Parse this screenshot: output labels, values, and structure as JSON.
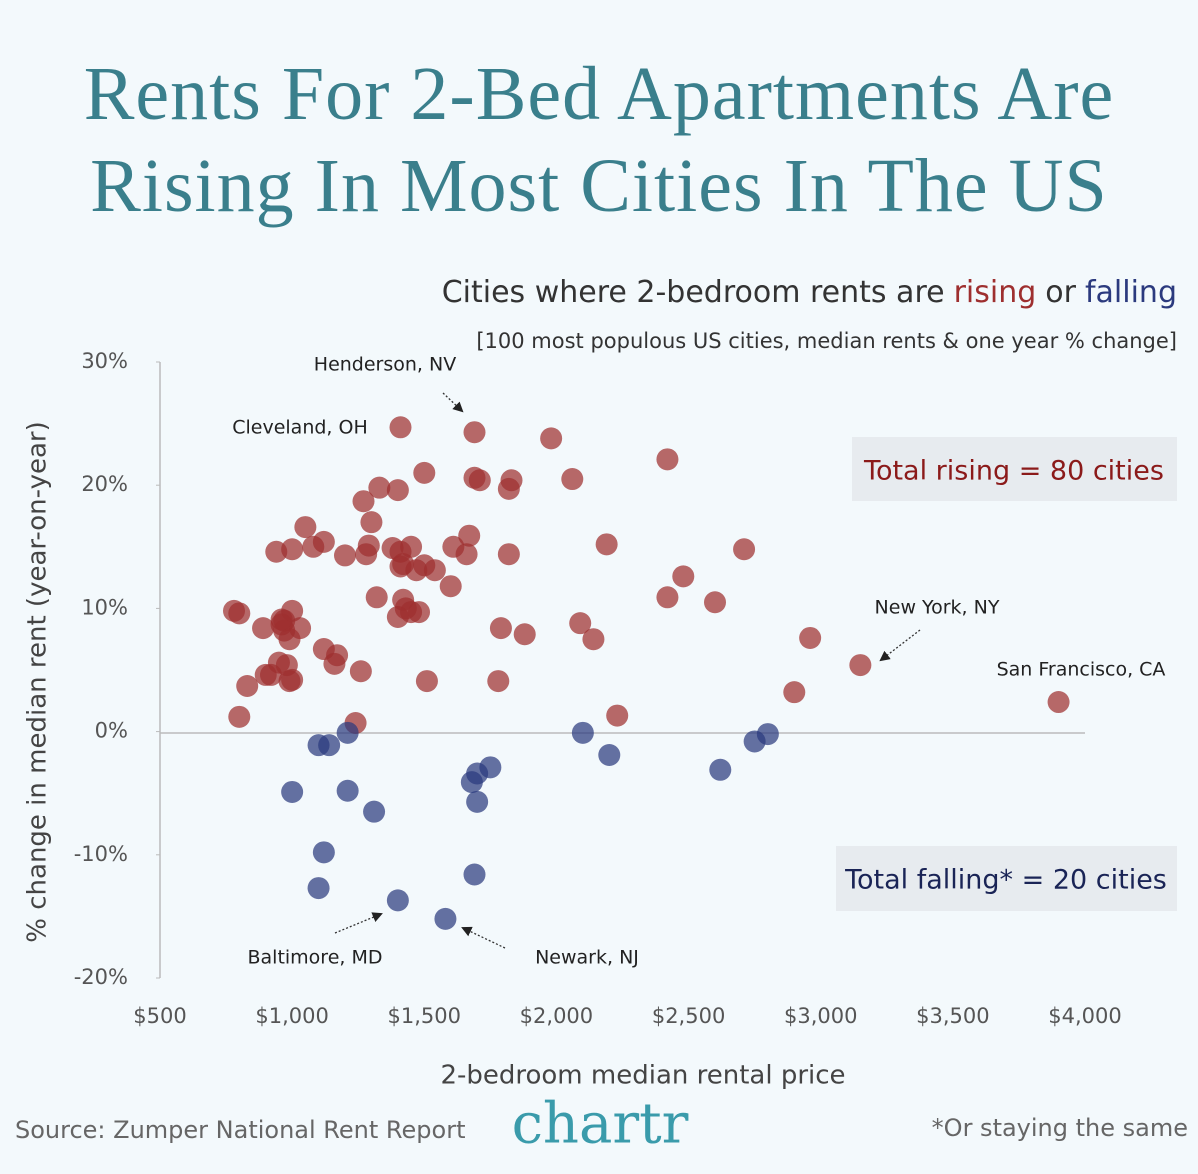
{
  "chart_data": {
    "type": "scatter",
    "title": "Rents For 2-Bed Apartments Are Rising In Most Cities In The US",
    "subtitle": {
      "lead": "Cities where 2-bedroom rents are",
      "joiner": "or"
    },
    "note": "[100 most populous US cities, median rents & one year % change]",
    "x_label": "2-bedroom median rental price",
    "y_label": "% change in median rent (year-on-year)",
    "source": "Source: Zumper National Rent Report",
    "logo": "chartr",
    "footnote": "*Or staying the same",
    "totals": [
      "Total rising = 80 cities",
      "Total falling* = 20 cities"
    ],
    "annotations": [
      "Henderson, NV",
      "Cleveland, OH",
      "New York, NY",
      "San Francisco, CA",
      "Baltimore, MD",
      "Newark, NJ"
    ],
    "xlim": [
      500,
      4000
    ],
    "ylim": [
      -20,
      30
    ],
    "xticks": [
      {
        "value": 500,
        "label": "$500"
      },
      {
        "value": 1000,
        "label": "$1,000"
      },
      {
        "value": 1500,
        "label": "$1,500"
      },
      {
        "value": 2000,
        "label": "$2,000"
      },
      {
        "value": 2500,
        "label": "$2,500"
      },
      {
        "value": 3000,
        "label": "$3,000"
      },
      {
        "value": 3500,
        "label": "$3,500"
      },
      {
        "value": 4000,
        "label": "$4,000"
      }
    ],
    "yticks": [
      {
        "value": 30,
        "label": "30%"
      },
      {
        "value": 20,
        "label": "20%"
      },
      {
        "value": 10,
        "label": "10%"
      },
      {
        "value": 0,
        "label": "0%"
      },
      {
        "value": -10,
        "label": "-10%"
      },
      {
        "value": -20,
        "label": "-20%"
      }
    ],
    "grid": false,
    "series": [
      {
        "name": "rising",
        "color": "#9e2f2f",
        "x": [
          1410,
          1690,
          1980,
          2420,
          2060,
          1690,
          1710,
          1830,
          1820,
          1500,
          1330,
          1400,
          1270,
          1300,
          1050,
          940,
          1000,
          1080,
          1120,
          1200,
          1290,
          1280,
          1380,
          1450,
          1410,
          1420,
          1410,
          1470,
          1500,
          1540,
          1610,
          1670,
          1660,
          1600,
          1820,
          2190,
          2710,
          2480,
          2420,
          2600,
          1320,
          1420,
          1430,
          1450,
          1400,
          1480,
          780,
          800,
          890,
          970,
          1000,
          970,
          1030,
          990,
          1790,
          1880,
          2090,
          2140,
          2960,
          3150,
          2900,
          3900,
          2230,
          1240,
          800,
          830,
          900,
          950,
          980,
          1000,
          990,
          1120,
          1170,
          1160,
          1260,
          1510,
          1780,
          960,
          960,
          920
        ],
        "values": [
          24.7,
          24.3,
          23.8,
          22.1,
          20.5,
          20.6,
          20.4,
          20.4,
          19.7,
          21.0,
          19.8,
          19.6,
          18.7,
          17.0,
          16.6,
          14.6,
          14.8,
          15.0,
          15.4,
          14.3,
          15.1,
          14.4,
          14.9,
          15.0,
          14.6,
          13.6,
          13.4,
          13.1,
          13.5,
          13.1,
          15.0,
          15.9,
          14.4,
          11.8,
          14.4,
          15.2,
          14.8,
          12.6,
          10.9,
          10.5,
          10.9,
          10.7,
          10.0,
          9.7,
          9.3,
          9.7,
          9.8,
          9.6,
          8.4,
          9.0,
          9.8,
          8.2,
          8.4,
          7.5,
          8.4,
          7.9,
          8.8,
          7.5,
          7.6,
          5.4,
          3.2,
          2.4,
          1.3,
          0.7,
          1.2,
          3.7,
          4.6,
          5.6,
          5.4,
          4.2,
          4.1,
          6.7,
          6.2,
          5.5,
          4.9,
          4.1,
          4.1,
          9.1,
          8.7,
          4.6
        ]
      },
      {
        "name": "falling",
        "color": "#2b3a7e",
        "x": [
          1100,
          1140,
          1210,
          1000,
          1210,
          1310,
          1120,
          1100,
          1400,
          1580,
          1690,
          1700,
          1680,
          1700,
          1750,
          2100,
          2200,
          2620,
          2750,
          2800
        ],
        "values": [
          -1.1,
          -1.1,
          -0.1,
          -4.9,
          -4.8,
          -6.5,
          -9.8,
          -12.7,
          -13.7,
          -15.2,
          -11.6,
          -5.7,
          -4.1,
          -3.4,
          -2.9,
          -0.1,
          -1.9,
          -3.1,
          -0.8,
          -0.2
        ]
      }
    ]
  }
}
